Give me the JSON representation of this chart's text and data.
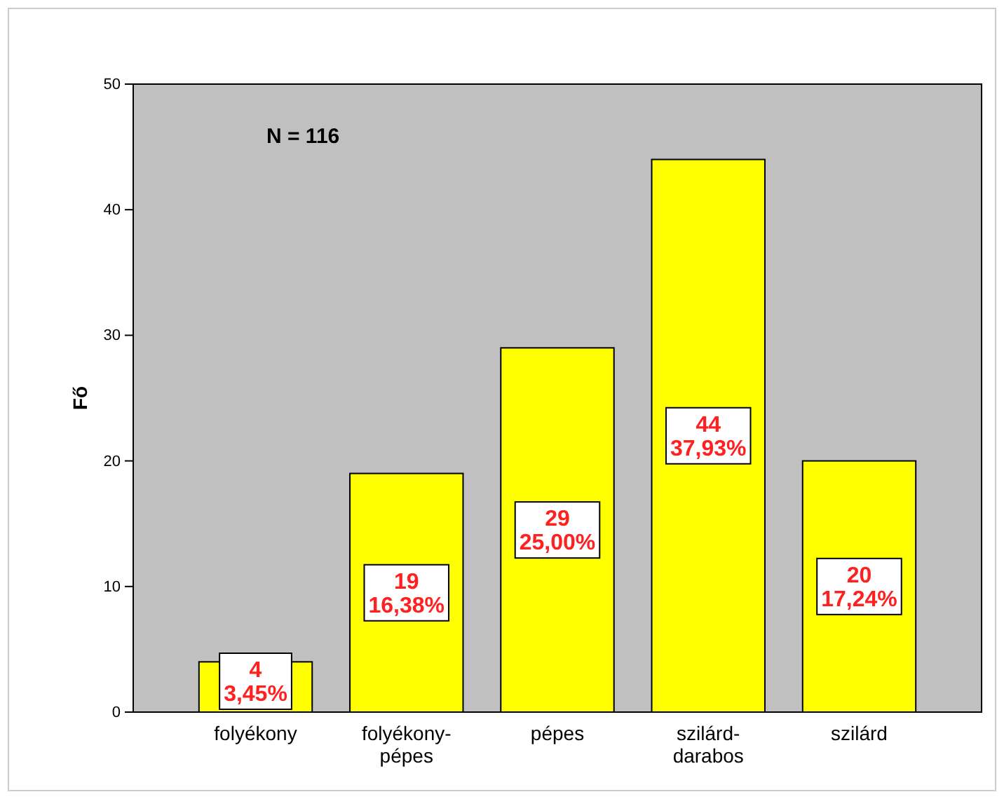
{
  "chart_data": {
    "type": "bar",
    "ylabel": "Fő",
    "annotations": [
      "N = 116"
    ],
    "categories": [
      "folyékony",
      "folyékony-pépes",
      "pépes",
      "szilárd-darabos",
      "szilárd"
    ],
    "values": [
      4,
      19,
      29,
      44,
      20
    ],
    "color": "#ffff00",
    "value_labels": [
      "4\n3,45%",
      "19\n16,38%",
      "29\n25,00%",
      "44\n37,93%",
      "20\n17,24%"
    ],
    "ylim": [
      0,
      50
    ],
    "yticks": [
      0,
      10,
      20,
      30,
      40,
      50
    ],
    "grid": false
  }
}
